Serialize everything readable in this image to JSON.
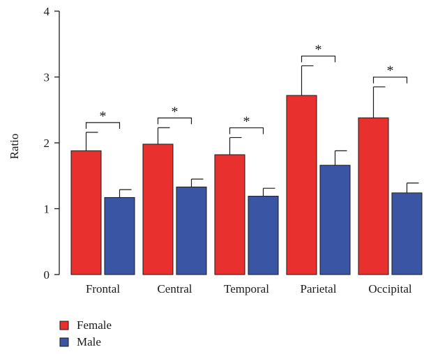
{
  "chart_data": {
    "type": "bar",
    "categories": [
      "Frontal",
      "Central",
      "Temporal",
      "Parietal",
      "Occipital"
    ],
    "series": [
      {
        "name": "Female",
        "color": "#e8302e",
        "values": [
          1.88,
          1.98,
          1.82,
          2.72,
          2.38
        ],
        "errors": [
          0.28,
          0.25,
          0.26,
          0.45,
          0.47
        ]
      },
      {
        "name": "Male",
        "color": "#3a55a4",
        "values": [
          1.17,
          1.33,
          1.19,
          1.66,
          1.24
        ],
        "errors": [
          0.12,
          0.12,
          0.12,
          0.22,
          0.15
        ]
      }
    ],
    "significance": [
      "*",
      "*",
      "*",
      "*",
      "*"
    ],
    "ylabel": "Ratio",
    "xlabel": "",
    "ylim": [
      0,
      4
    ],
    "yticks": [
      "0",
      "1",
      "2",
      "3",
      "4"
    ],
    "grid": false,
    "legend_position": "bottom-left"
  }
}
